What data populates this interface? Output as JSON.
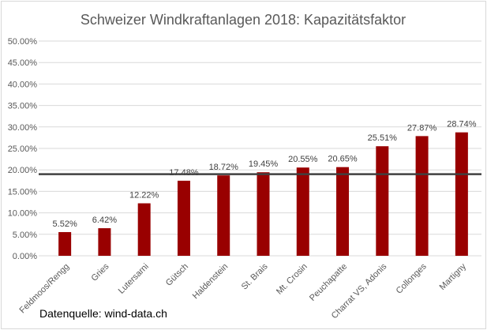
{
  "chart_data": {
    "type": "bar",
    "title": "Schweizer Windkraftanlagen 2018: Kapazitätsfaktor",
    "xlabel": "",
    "ylabel": "",
    "ylim": [
      0,
      50
    ],
    "y_ticks": [
      "0.00%",
      "5.00%",
      "10.00%",
      "15.00%",
      "20.00%",
      "25.00%",
      "30.00%",
      "35.00%",
      "40.00%",
      "45.00%",
      "50.00%"
    ],
    "grid": true,
    "categories": [
      "Feldmoos/Rengg",
      "Gries",
      "Lutersarni",
      "Gütsch",
      "Haldenstein",
      "St. Brais",
      "Mt. Crosin",
      "Peuchapatte",
      "Charrat VS, Adonis",
      "Collonges",
      "Martigny"
    ],
    "values": [
      5.52,
      6.42,
      12.22,
      17.48,
      18.72,
      19.45,
      20.55,
      20.65,
      25.51,
      27.87,
      28.74
    ],
    "data_labels": [
      "5.52%",
      "6.42%",
      "12.22%",
      "17.48%",
      "18.72%",
      "19.45%",
      "20.55%",
      "20.65%",
      "25.51%",
      "27.87%",
      "28.74%"
    ],
    "reference_line": 19.0,
    "annotation": "Datenquelle: wind-data.ch",
    "colors": {
      "bar": "#990000",
      "reference_line": "#404040",
      "grid": "#d9d9d9"
    }
  }
}
